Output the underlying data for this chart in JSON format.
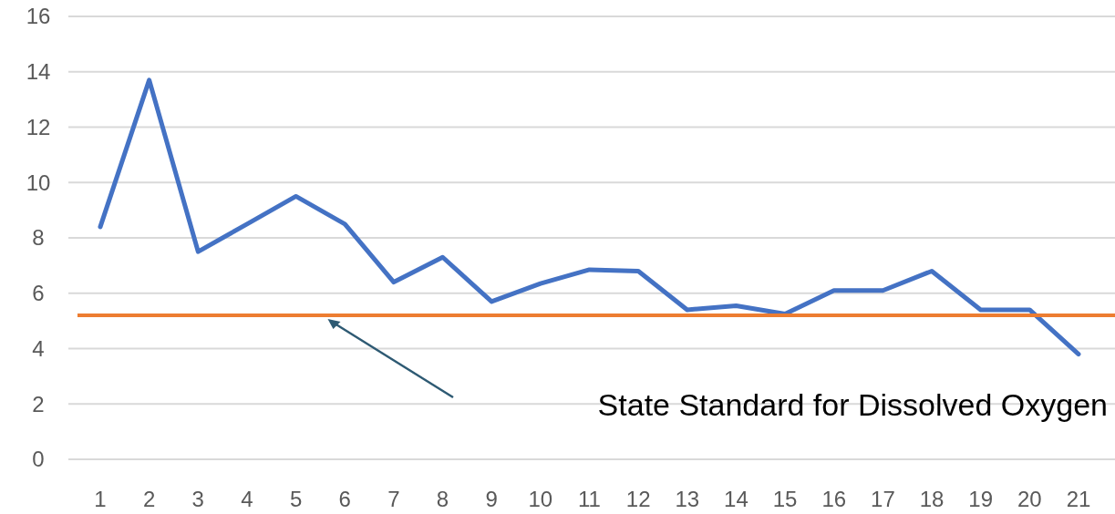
{
  "chart_data": {
    "type": "line",
    "categories": [
      "1",
      "2",
      "3",
      "4",
      "5",
      "6",
      "7",
      "8",
      "9",
      "10",
      "11",
      "12",
      "13",
      "14",
      "15",
      "16",
      "17",
      "18",
      "19",
      "20",
      "21"
    ],
    "series": [
      {
        "color": "#4472c4",
        "values": [
          8.4,
          13.7,
          7.5,
          8.5,
          9.5,
          8.5,
          6.4,
          7.3,
          5.7,
          6.35,
          6.85,
          6.8,
          5.4,
          5.55,
          5.25,
          6.1,
          6.1,
          6.8,
          5.4,
          5.4,
          3.8
        ]
      }
    ],
    "ylim": [
      0,
      16
    ],
    "yticks": [
      0,
      2,
      4,
      6,
      8,
      10,
      12,
      14,
      16
    ],
    "grid": "y",
    "marker": "none",
    "line_style": "solid",
    "ref_lines": [
      {
        "axis": "y",
        "value": 5.2,
        "label": "State Standard for Dissolved Oxygen",
        "color": "#ed7d31",
        "line_style": "solid"
      }
    ]
  }
}
